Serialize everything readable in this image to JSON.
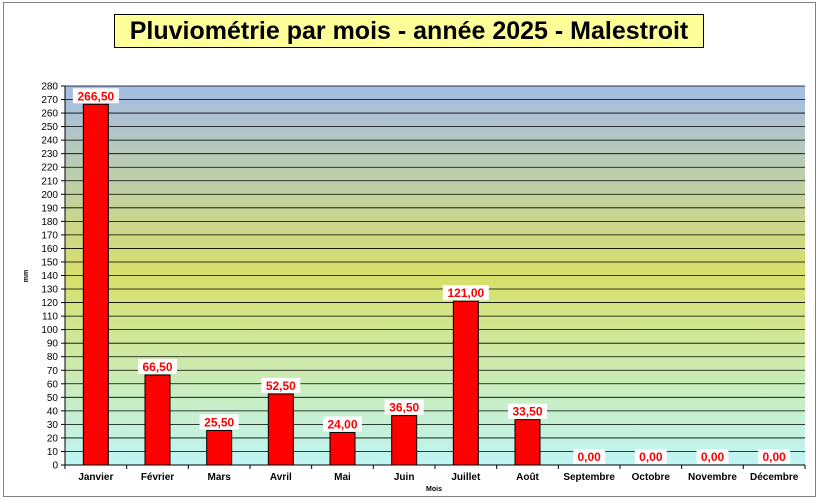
{
  "chart_data": {
    "type": "bar",
    "title": "Pluviométrie par mois - année 2025 - Malestroit",
    "xlabel": "Mois",
    "ylabel": "mm",
    "categories": [
      "Janvier",
      "Février",
      "Mars",
      "Avril",
      "Mai",
      "Juin",
      "Juillet",
      "Août",
      "Septembre",
      "Octobre",
      "Novembre",
      "Décembre"
    ],
    "values": [
      266.5,
      66.5,
      25.5,
      52.5,
      24.0,
      36.5,
      121.0,
      33.5,
      0.0,
      0.0,
      0.0,
      0.0
    ],
    "data_labels": [
      "266,50",
      "66,50",
      "25,50",
      "52,50",
      "24,00",
      "36,50",
      "121,00",
      "33,50",
      "0,00",
      "0,00",
      "0,00",
      "0,00"
    ],
    "ylim": [
      0,
      280
    ],
    "ytick_step": 10,
    "grid": true,
    "legend": "none",
    "colors": {
      "bar": "#ff0000",
      "bar_border": "#000000",
      "label_text": "#ff0000",
      "plot_top": "#a4bde6",
      "plot_middle": "#d8e06a",
      "plot_bottom": "#bff5f5",
      "title_background": "#ffff99"
    }
  }
}
